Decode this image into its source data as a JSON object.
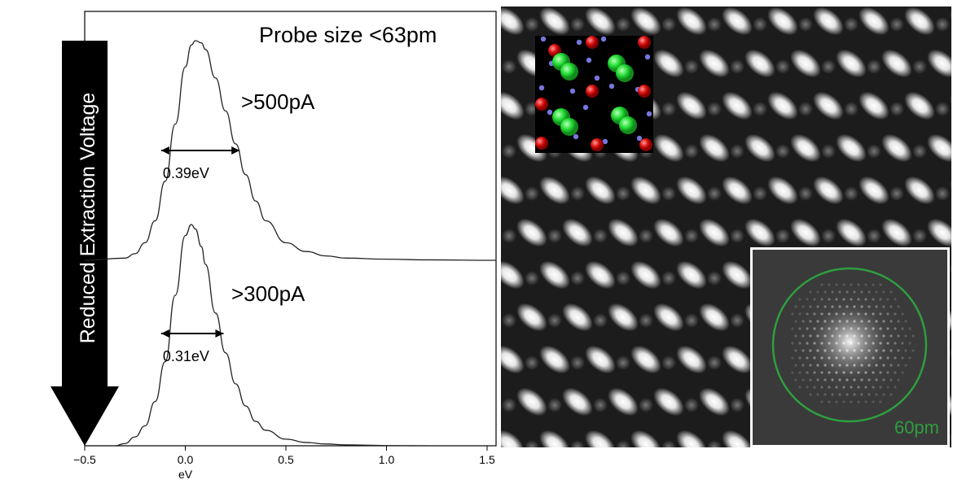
{
  "chart_data": {
    "type": "line",
    "xlabel": "eV",
    "ylabel": "",
    "xlim": [
      -0.55,
      1.55
    ],
    "x_ticks": [
      -0.5,
      0.0,
      0.5,
      1.0,
      1.5
    ],
    "x_tick_labels": [
      "−0.5",
      "0.0",
      "0.5",
      "1.0",
      "1.5"
    ],
    "grid": false,
    "annotations": {
      "probe_size": "Probe size <63pm",
      "arrow_label": "Reduced  Extraction  Voltage"
    },
    "series": [
      {
        "label": ">500pA",
        "fwhm_label": "0.39eV",
        "fwhm_range": [
          -0.12,
          0.27
        ],
        "x": [
          -0.55,
          -0.3,
          -0.25,
          -0.2,
          -0.15,
          -0.1,
          -0.05,
          0.0,
          0.03,
          0.05,
          0.08,
          0.1,
          0.15,
          0.2,
          0.25,
          0.3,
          0.35,
          0.4,
          0.5,
          0.6,
          0.7,
          0.8,
          1.0,
          1.2,
          1.55
        ],
        "y": [
          0.0,
          0.01,
          0.03,
          0.08,
          0.18,
          0.36,
          0.62,
          0.88,
          0.98,
          1.0,
          0.99,
          0.96,
          0.83,
          0.68,
          0.53,
          0.39,
          0.27,
          0.18,
          0.08,
          0.04,
          0.02,
          0.01,
          0.005,
          0.002,
          0.0
        ]
      },
      {
        "label": ">300pA",
        "fwhm_label": "0.31eV",
        "fwhm_range": [
          -0.12,
          0.19
        ],
        "x": [
          -0.55,
          -0.35,
          -0.3,
          -0.25,
          -0.2,
          -0.15,
          -0.1,
          -0.05,
          0.0,
          0.03,
          0.05,
          0.08,
          0.1,
          0.15,
          0.2,
          0.25,
          0.3,
          0.35,
          0.4,
          0.5,
          0.6,
          0.7,
          0.8,
          1.0,
          1.2
        ],
        "y": [
          0.0,
          0.0,
          0.01,
          0.04,
          0.09,
          0.2,
          0.38,
          0.68,
          0.95,
          1.0,
          0.98,
          0.9,
          0.82,
          0.6,
          0.42,
          0.28,
          0.18,
          0.11,
          0.07,
          0.03,
          0.015,
          0.008,
          0.004,
          0.001,
          0.0
        ]
      }
    ]
  },
  "stem_image": {
    "scale_label": "60pm",
    "inset_circle_color": "#2f9e3f",
    "atom_colors": {
      "green": "#22dd33",
      "red": "#dd1111",
      "small": "#7777dd"
    }
  }
}
